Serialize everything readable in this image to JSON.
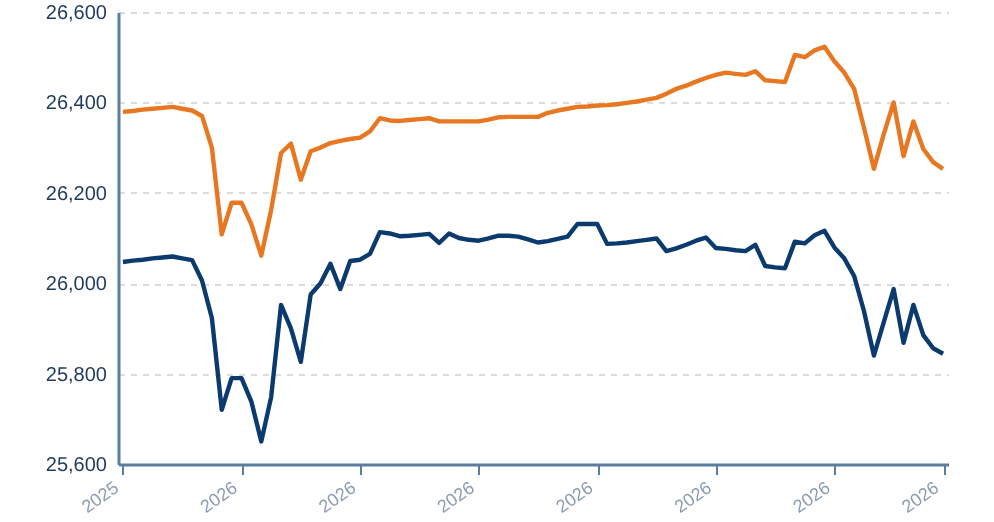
{
  "chart_data": {
    "type": "line",
    "grid": "y",
    "line_style": "solid",
    "marker": "none",
    "categories": [
      "2025",
      null,
      null,
      null,
      null,
      null,
      null,
      null,
      null,
      null,
      null,
      null,
      "2026",
      null,
      null,
      null,
      null,
      null,
      null,
      null,
      null,
      null,
      null,
      null,
      "2026",
      null,
      null,
      null,
      null,
      null,
      null,
      null,
      null,
      null,
      null,
      null,
      "2026",
      null,
      null,
      null,
      null,
      null,
      null,
      null,
      null,
      null,
      null,
      null,
      "2026",
      null,
      null,
      null,
      null,
      null,
      null,
      null,
      null,
      null,
      null,
      null,
      "2026",
      null,
      null,
      null,
      null,
      null,
      null,
      null,
      null,
      null,
      null,
      null,
      "2026",
      null,
      null,
      null,
      null,
      null,
      null,
      null,
      null,
      null,
      null,
      "2026"
    ],
    "ylim": [
      25600,
      26600
    ],
    "yticks": [
      {
        "value": 25600,
        "label": "25,600"
      },
      {
        "value": 25800,
        "label": "25,800"
      },
      {
        "value": 26000,
        "label": "26,000"
      },
      {
        "value": 26200,
        "label": "26,200"
      },
      {
        "value": 26400,
        "label": "26,400"
      },
      {
        "value": 26600,
        "label": "26,600"
      }
    ],
    "series": [
      {
        "color": "#e87722",
        "values": [
          26379,
          26381,
          26384,
          26386,
          26388,
          26390,
          26386,
          26382,
          26370,
          26300,
          26108,
          26178,
          26178,
          26130,
          26061,
          26162,
          26288,
          26309,
          26229,
          26292,
          26300,
          26310,
          26315,
          26319,
          26322,
          26336,
          26365,
          26360,
          26359,
          26361,
          26363,
          26365,
          26358,
          26358,
          26358,
          26358,
          26358,
          26362,
          26367,
          26368,
          26368,
          26368,
          26368,
          26377,
          26382,
          26386,
          26390,
          26391,
          26393,
          26394,
          26396,
          26399,
          26402,
          26406,
          26410,
          26419,
          26430,
          26437,
          26446,
          26454,
          26461,
          26466,
          26463,
          26461,
          26469,
          26449,
          26447,
          26445,
          26505,
          26500,
          26515,
          26523,
          26491,
          26466,
          26430,
          26344,
          26253,
          26330,
          26400,
          26281,
          26358,
          26297,
          26268,
          26253
        ]
      },
      {
        "color": "#0b3a6e",
        "values": [
          26047,
          26050,
          26052,
          26055,
          26057,
          26059,
          26055,
          26051,
          26006,
          25923,
          25720,
          25790,
          25790,
          25738,
          25650,
          25748,
          25952,
          25900,
          25826,
          25975,
          26000,
          26043,
          25987,
          26049,
          26052,
          26065,
          26113,
          26110,
          26104,
          26105,
          26107,
          26109,
          26089,
          26110,
          26100,
          26096,
          26094,
          26099,
          26105,
          26105,
          26103,
          26097,
          26090,
          26093,
          26098,
          26103,
          26131,
          26131,
          26131,
          26087,
          26088,
          26090,
          26093,
          26096,
          26099,
          26071,
          26077,
          26085,
          26094,
          26101,
          26078,
          26076,
          26073,
          26071,
          26085,
          26038,
          26035,
          26033,
          26092,
          26088,
          26106,
          26116,
          26079,
          26055,
          26016,
          25938,
          25840,
          25914,
          25987,
          25868,
          25952,
          25885,
          25856,
          25844
        ]
      }
    ]
  }
}
